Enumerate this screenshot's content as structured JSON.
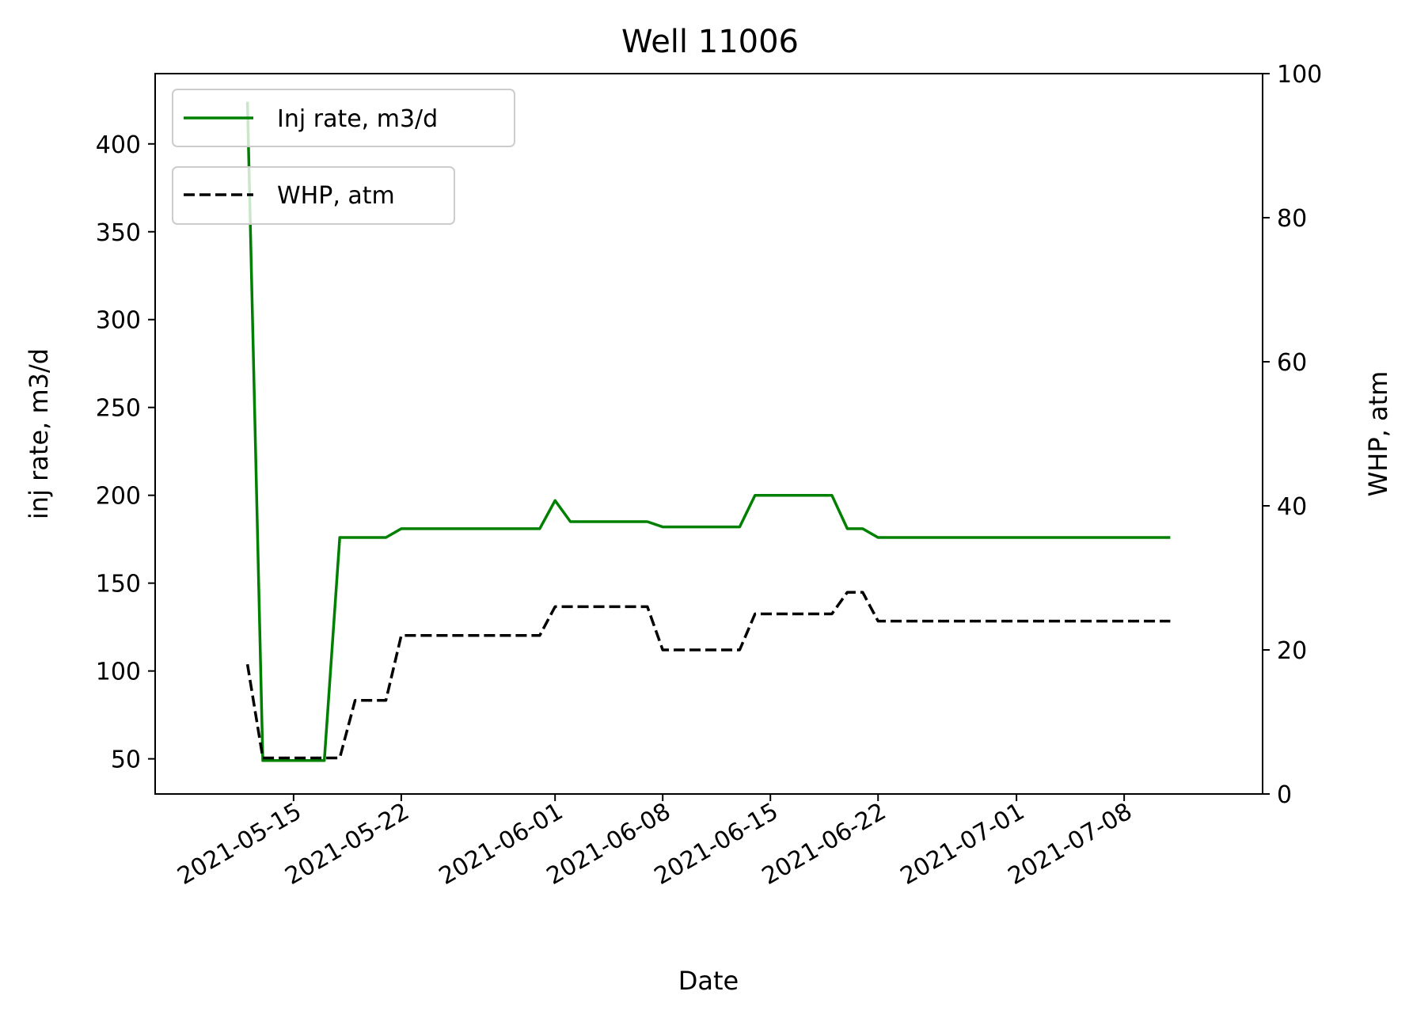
{
  "chart_data": {
    "type": "line",
    "title": "Well 11006",
    "xlabel": "Date",
    "ylabel_left": "inj rate, m3/d",
    "ylabel_right": "WHP, atm",
    "x_type": "date",
    "xlim": [
      "2021-05-06",
      "2021-07-17"
    ],
    "ylim_left": [
      30,
      440
    ],
    "ylim_right": [
      0,
      100
    ],
    "yticks_left": [
      50,
      100,
      150,
      200,
      250,
      300,
      350,
      400
    ],
    "yticks_right": [
      0,
      20,
      40,
      60,
      80,
      100
    ],
    "xticks": [
      "2021-05-15",
      "2021-05-22",
      "2021-06-01",
      "2021-06-08",
      "2021-06-15",
      "2021-06-22",
      "2021-07-01",
      "2021-07-08"
    ],
    "grid": false,
    "legends": [
      {
        "label": "Inj rate, m3/d",
        "placement": "top-left"
      },
      {
        "label": "WHP, atm",
        "placement": "upper-left"
      }
    ],
    "series": [
      {
        "name": "Inj rate, m3/d",
        "axis": "left",
        "color": "#008000",
        "style": "solid",
        "points": [
          [
            "2021-05-12",
            424
          ],
          [
            "2021-05-13",
            49
          ],
          [
            "2021-05-17",
            49
          ],
          [
            "2021-05-18",
            176
          ],
          [
            "2021-05-21",
            176
          ],
          [
            "2021-05-22",
            181
          ],
          [
            "2021-05-31",
            181
          ],
          [
            "2021-06-01",
            197
          ],
          [
            "2021-06-02",
            185
          ],
          [
            "2021-06-07",
            185
          ],
          [
            "2021-06-08",
            182
          ],
          [
            "2021-06-13",
            182
          ],
          [
            "2021-06-14",
            200
          ],
          [
            "2021-06-19",
            200
          ],
          [
            "2021-06-20",
            181
          ],
          [
            "2021-06-21",
            181
          ],
          [
            "2021-06-22",
            176
          ],
          [
            "2021-07-11",
            176
          ]
        ]
      },
      {
        "name": "WHP, atm",
        "axis": "right",
        "color": "#000000",
        "style": "dashed",
        "points": [
          [
            "2021-05-12",
            18
          ],
          [
            "2021-05-13",
            5
          ],
          [
            "2021-05-18",
            5
          ],
          [
            "2021-05-19",
            13
          ],
          [
            "2021-05-21",
            13
          ],
          [
            "2021-05-22",
            22
          ],
          [
            "2021-05-31",
            22
          ],
          [
            "2021-06-01",
            26
          ],
          [
            "2021-06-07",
            26
          ],
          [
            "2021-06-08",
            20
          ],
          [
            "2021-06-13",
            20
          ],
          [
            "2021-06-14",
            25
          ],
          [
            "2021-06-19",
            25
          ],
          [
            "2021-06-20",
            28
          ],
          [
            "2021-06-21",
            28
          ],
          [
            "2021-06-22",
            24
          ],
          [
            "2021-07-11",
            24
          ]
        ]
      }
    ]
  }
}
